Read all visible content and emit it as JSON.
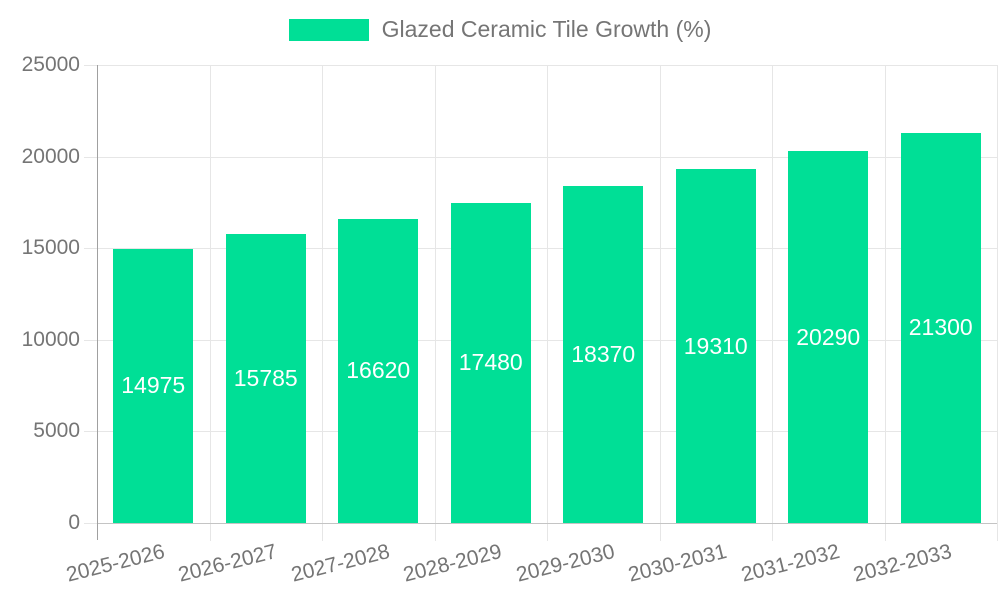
{
  "chart_data": {
    "type": "bar",
    "title": "Glazed Ceramic Tile Growth (%)",
    "legend": [
      "Glazed Ceramic Tile Growth (%)"
    ],
    "legend_position": "top",
    "categories": [
      "2025-2026",
      "2026-2027",
      "2027-2028",
      "2028-2029",
      "2029-2030",
      "2030-2031",
      "2031-2032",
      "2032-2033"
    ],
    "values": [
      14975,
      15785,
      16620,
      17480,
      18370,
      19310,
      20290,
      21300
    ],
    "xlabel": "",
    "ylabel": "",
    "ylim": [
      0,
      25000
    ],
    "yticks": [
      0,
      5000,
      10000,
      15000,
      20000,
      25000
    ],
    "grid": true,
    "colors": {
      "bar": "#00DF96",
      "bar_label": "#FFFFFF",
      "axis_text": "#757575",
      "legend_text": "#757575",
      "grid": "#E6E6E6",
      "x_axis_line": "#C4C4C4",
      "y_axis_line": "#A0A0A0",
      "background": "#FFFFFF"
    }
  }
}
